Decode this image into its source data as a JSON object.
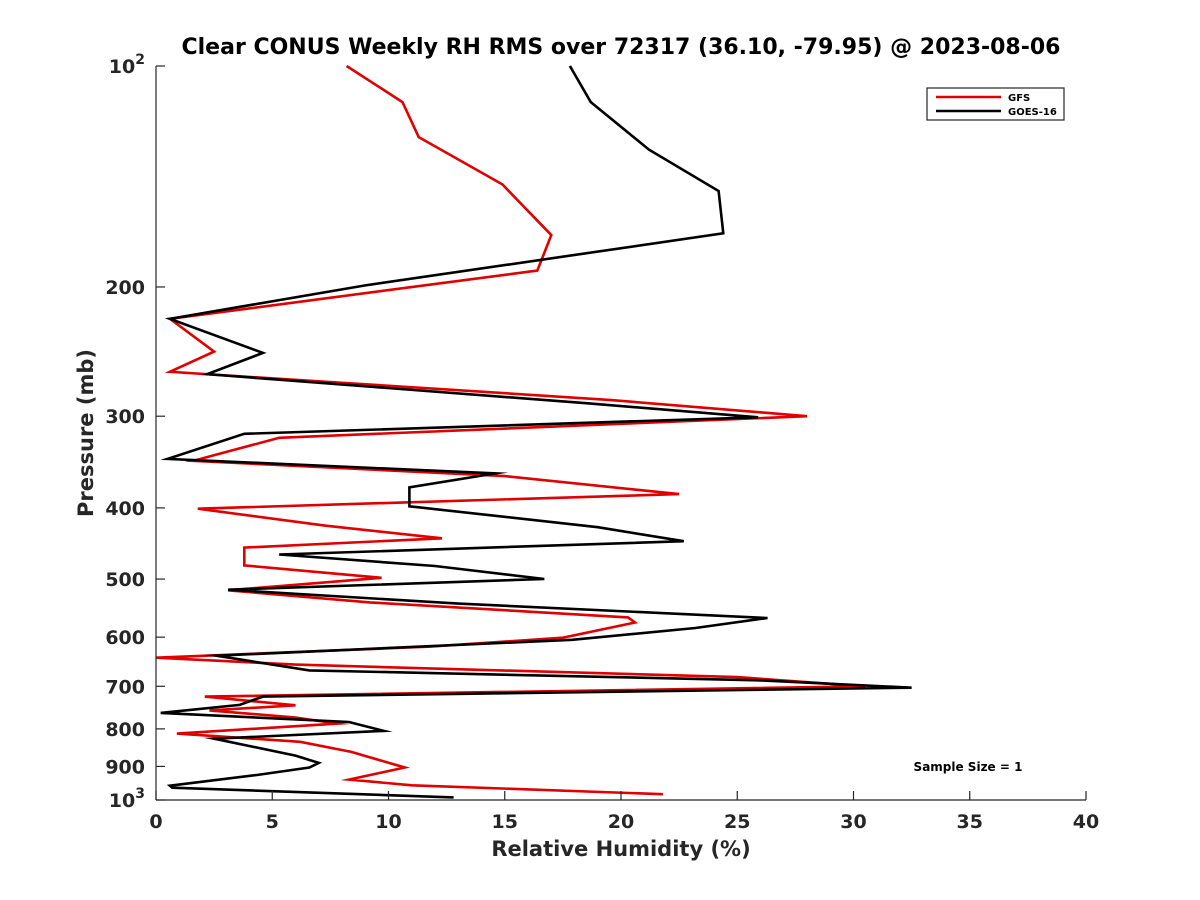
{
  "chart_data": {
    "type": "line",
    "title": "Clear CONUS Weekly RH RMS over 72317 (36.10, -79.95) @ 2023-08-06",
    "xlabel": "Relative Humidity (%)",
    "ylabel": "Pressure (mb)",
    "xlim": [
      0,
      40
    ],
    "ylim": [
      100,
      1000
    ],
    "yscale": "log",
    "y_reversed": true,
    "x_ticks": [
      "0",
      "5",
      "10",
      "15",
      "20",
      "25",
      "30",
      "35",
      "40"
    ],
    "y_ticks": [
      {
        "value": 100,
        "label": "10",
        "sup": "2"
      },
      {
        "value": 200,
        "label": "200",
        "sup": ""
      },
      {
        "value": 300,
        "label": "300",
        "sup": ""
      },
      {
        "value": 400,
        "label": "400",
        "sup": ""
      },
      {
        "value": 500,
        "label": "500",
        "sup": ""
      },
      {
        "value": 600,
        "label": "600",
        "sup": ""
      },
      {
        "value": 700,
        "label": "700",
        "sup": ""
      },
      {
        "value": 800,
        "label": "800",
        "sup": ""
      },
      {
        "value": 900,
        "label": "900",
        "sup": ""
      },
      {
        "value": 1000,
        "label": "10",
        "sup": "3"
      }
    ],
    "grid": false,
    "legend_position": "top-right",
    "annotation": "Sample Size = 1",
    "series": [
      {
        "name": "GFS",
        "color": "#e00000",
        "points": [
          [
            8.2,
            100
          ],
          [
            10.6,
            112
          ],
          [
            11.3,
            125
          ],
          [
            14.9,
            145
          ],
          [
            17.0,
            170
          ],
          [
            16.4,
            190
          ],
          [
            0.6,
            221
          ],
          [
            2.5,
            245
          ],
          [
            0.6,
            261
          ],
          [
            19.5,
            285
          ],
          [
            28.0,
            300
          ],
          [
            5.3,
            321
          ],
          [
            1.6,
            345
          ],
          [
            15.0,
            362
          ],
          [
            22.5,
            383
          ],
          [
            1.8,
            401
          ],
          [
            7.3,
            423
          ],
          [
            12.3,
            440
          ],
          [
            3.8,
            453
          ],
          [
            3.8,
            479
          ],
          [
            9.7,
            498
          ],
          [
            3.1,
            518
          ],
          [
            9.2,
            538
          ],
          [
            20.3,
            564
          ],
          [
            20.6,
            573
          ],
          [
            17.5,
            601
          ],
          [
            11.8,
            618
          ],
          [
            0.0,
            640
          ],
          [
            6.0,
            654
          ],
          [
            25.0,
            680
          ],
          [
            30.5,
            700
          ],
          [
            2.1,
            723
          ],
          [
            6.0,
            743
          ],
          [
            2.3,
            755
          ],
          [
            6.0,
            772
          ],
          [
            7.8,
            787
          ],
          [
            0.9,
            812
          ],
          [
            6.2,
            833
          ],
          [
            8.4,
            860
          ],
          [
            10.7,
            903
          ],
          [
            8.3,
            938
          ],
          [
            11.0,
            955
          ],
          [
            21.8,
            982
          ]
        ]
      },
      {
        "name": "GOES-16",
        "color": "#000000",
        "points": [
          [
            17.8,
            100
          ],
          [
            18.7,
            112
          ],
          [
            21.2,
            130
          ],
          [
            24.2,
            148
          ],
          [
            24.4,
            169
          ],
          [
            9.0,
            199
          ],
          [
            0.6,
            221
          ],
          [
            4.6,
            246
          ],
          [
            2.2,
            263
          ],
          [
            18.5,
            288
          ],
          [
            25.9,
            301
          ],
          [
            3.8,
            317
          ],
          [
            0.5,
            343
          ],
          [
            14.6,
            359
          ],
          [
            10.9,
            375
          ],
          [
            10.9,
            398
          ],
          [
            19.0,
            425
          ],
          [
            22.7,
            444
          ],
          [
            5.3,
            463
          ],
          [
            12.0,
            480
          ],
          [
            16.7,
            500
          ],
          [
            3.1,
            517
          ],
          [
            13.0,
            540
          ],
          [
            26.3,
            565
          ],
          [
            23.2,
            583
          ],
          [
            17.9,
            605
          ],
          [
            2.6,
            636
          ],
          [
            6.6,
            666
          ],
          [
            25.9,
            687
          ],
          [
            32.5,
            703
          ],
          [
            4.6,
            723
          ],
          [
            3.6,
            742
          ],
          [
            0.2,
            761
          ],
          [
            8.3,
            783
          ],
          [
            9.8,
            805
          ],
          [
            2.5,
            825
          ],
          [
            6.0,
            870
          ],
          [
            7.0,
            890
          ],
          [
            6.6,
            903
          ],
          [
            4.3,
            925
          ],
          [
            0.6,
            956
          ],
          [
            0.7,
            962
          ],
          [
            12.8,
            992
          ]
        ]
      }
    ]
  }
}
